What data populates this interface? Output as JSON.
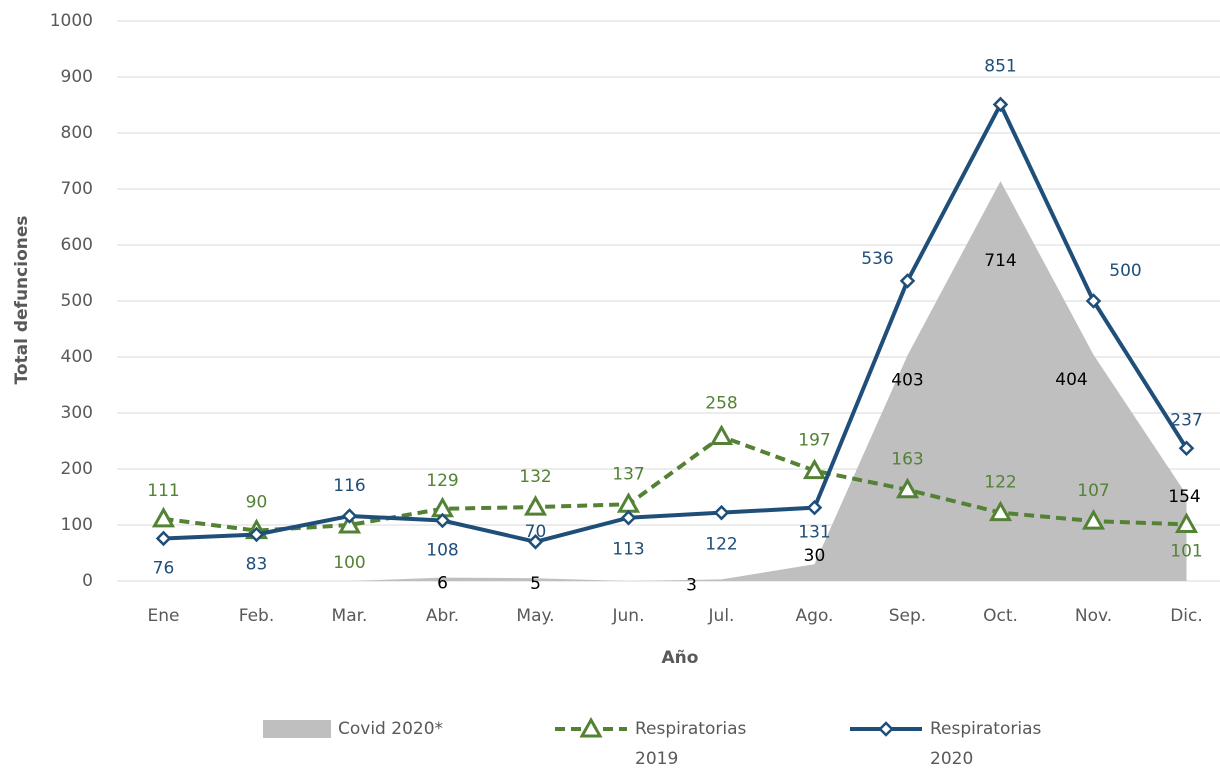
{
  "chart_data": {
    "type": "line",
    "x_label": "Año",
    "y_label": "Total defunciones",
    "categories": [
      "Ene",
      "Feb.",
      "Mar.",
      "Abr.",
      "May.",
      "Jun.",
      "Jul.",
      "Ago.",
      "Sep.",
      "Oct.",
      "Nov.",
      "Dic."
    ],
    "ylim": [
      0,
      1000
    ],
    "yticks": [
      0,
      100,
      200,
      300,
      400,
      500,
      600,
      700,
      800,
      900,
      1000
    ],
    "grid": true,
    "series": [
      {
        "name": "Covid 2020*",
        "kind": "area",
        "color": "#bfbfbf",
        "values": [
          0,
          0,
          0,
          6,
          5,
          0,
          3,
          30,
          403,
          714,
          404,
          154
        ],
        "value_labels": [
          null,
          null,
          null,
          "6",
          "5",
          null,
          "3",
          "30",
          "403",
          "714",
          "404",
          "154"
        ]
      },
      {
        "name": "Respiratorias 2019",
        "kind": "line",
        "color": "#548235",
        "dashed": true,
        "marker": "triangle",
        "values": [
          111,
          90,
          100,
          129,
          132,
          137,
          258,
          197,
          163,
          122,
          107,
          101
        ]
      },
      {
        "name": "Respiratorias 2020",
        "kind": "line",
        "color": "#1f4e79",
        "dashed": false,
        "marker": "diamond",
        "values": [
          76,
          83,
          116,
          108,
          70,
          113,
          122,
          131,
          536,
          851,
          500,
          237
        ]
      }
    ]
  }
}
